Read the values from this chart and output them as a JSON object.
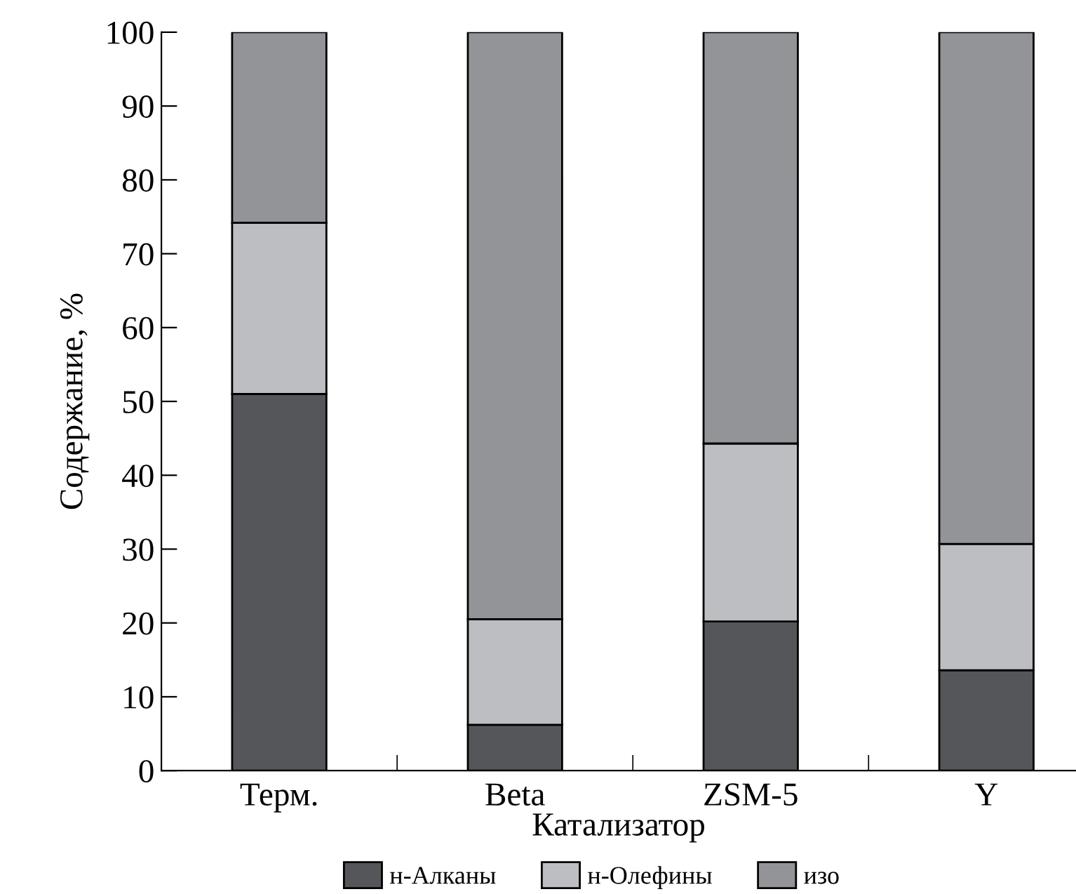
{
  "chart_data": {
    "type": "bar",
    "stacked": true,
    "xlabel": "Катализатор",
    "ylabel": "Содержание, %",
    "categories": [
      "Терм.",
      "Beta",
      "ZSM-5",
      "Y"
    ],
    "series": [
      {
        "name": "н-Алканы",
        "color": "#555659",
        "values": [
          51.0,
          6.2,
          20.2,
          13.6
        ]
      },
      {
        "name": "н-Олефины",
        "color": "#bdbec2",
        "values": [
          23.2,
          14.3,
          24.1,
          17.1
        ]
      },
      {
        "name": "изо",
        "color": "#939498",
        "values": [
          25.8,
          79.5,
          55.7,
          69.3
        ]
      }
    ],
    "ylim": [
      0,
      100
    ],
    "yticks": [
      0,
      10,
      20,
      30,
      40,
      50,
      60,
      70,
      80,
      90,
      100
    ],
    "grid": false,
    "legend": "bottom"
  }
}
